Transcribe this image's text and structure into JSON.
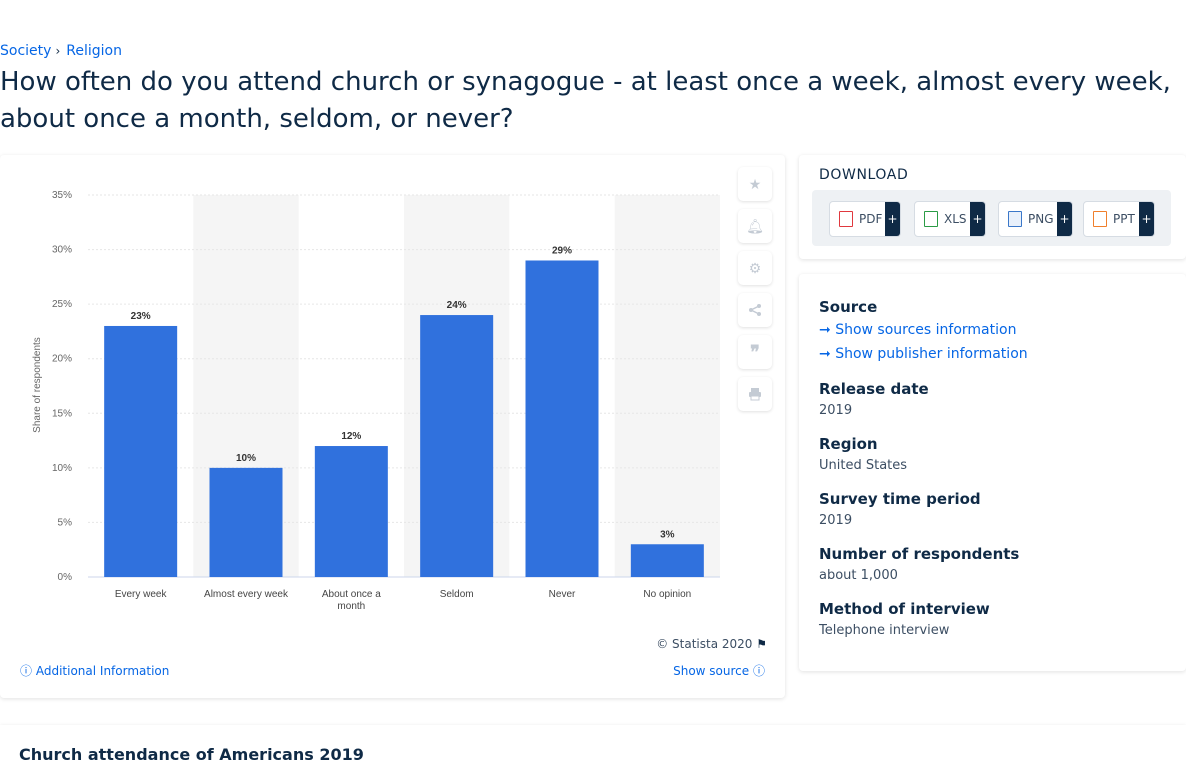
{
  "breadcrumb": {
    "items": [
      "Society",
      "Religion"
    ],
    "separator": "›"
  },
  "page_title": "How often do you attend church or synagogue - at least once a week, almost every week, about once a month, seldom, or never?",
  "chart_data": {
    "type": "bar",
    "categories": [
      "Every week",
      "Almost every week",
      "About once a month",
      "Seldom",
      "Never",
      "No opinion"
    ],
    "category_lines": [
      [
        "Every week"
      ],
      [
        "Almost every week"
      ],
      [
        "About once a",
        "month"
      ],
      [
        "Seldom"
      ],
      [
        "Never"
      ],
      [
        "No opinion"
      ]
    ],
    "values": [
      23,
      10,
      12,
      24,
      29,
      3
    ],
    "data_labels": [
      "23%",
      "10%",
      "12%",
      "24%",
      "29%",
      "3%"
    ],
    "ylabel": "Share of respondents",
    "xlabel": "",
    "ylim": [
      0,
      35
    ],
    "yticks": [
      0,
      5,
      10,
      15,
      20,
      25,
      30,
      35
    ],
    "ytick_labels": [
      "0%",
      "5%",
      "10%",
      "15%",
      "20%",
      "25%",
      "30%",
      "35%"
    ],
    "bar_color": "#3071dd",
    "grid": true
  },
  "chart_footer": {
    "copyright": "© Statista 2020",
    "additional_info": "Additional Information",
    "show_source": "Show source"
  },
  "tools": [
    "star-icon",
    "bell-icon",
    "gear-icon",
    "share-icon",
    "quote-icon",
    "print-icon"
  ],
  "download": {
    "title": "DOWNLOAD",
    "buttons": [
      {
        "label": "PDF",
        "color": "#e0383e"
      },
      {
        "label": "XLS",
        "color": "#2a9b45"
      },
      {
        "label": "PNG",
        "color": "#3a77c9"
      },
      {
        "label": "PPT",
        "color": "#f07f2c"
      }
    ],
    "plus": "+"
  },
  "info": {
    "source_label": "Source",
    "show_sources": "Show sources information",
    "show_publisher": "Show publisher information",
    "release_date_label": "Release date",
    "release_date": "2019",
    "region_label": "Region",
    "region": "United States",
    "survey_period_label": "Survey time period",
    "survey_period": "2019",
    "respondents_label": "Number of respondents",
    "respondents": "about 1,000",
    "method_label": "Method of interview",
    "method": "Telephone interview"
  },
  "bottom": {
    "title": "Church attendance of Americans 2019"
  }
}
